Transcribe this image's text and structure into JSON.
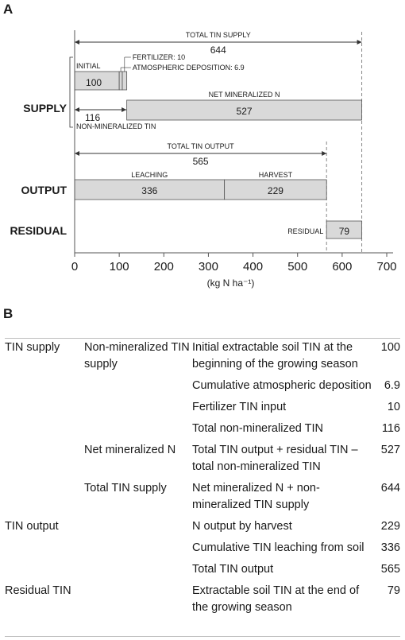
{
  "panel_a_label": "A",
  "panel_b_label": "B",
  "chart_data": {
    "type": "bar",
    "xlabel": "(kg N ha⁻¹)",
    "xlim": [
      0,
      700
    ],
    "xticks": [
      0,
      100,
      200,
      300,
      400,
      500,
      600,
      700
    ],
    "groups": [
      "SUPPLY",
      "OUTPUT",
      "RESIDUAL"
    ],
    "bars": [
      {
        "group": "SUPPLY",
        "label": "INITIAL",
        "value": 100,
        "start": 0,
        "value_text": "100"
      },
      {
        "group": "SUPPLY",
        "label": "ATMOSPHERIC DEPOSITION: 6.9",
        "value": 6.9,
        "start": 100,
        "value_text": ""
      },
      {
        "group": "SUPPLY",
        "label": "FERTILIZER: 10",
        "value": 10,
        "start": 106.9,
        "value_text": ""
      },
      {
        "group": "SUPPLY",
        "label": "NET MINERALIZED N",
        "value": 527,
        "start": 116.9,
        "value_text": "527"
      },
      {
        "group": "OUTPUT",
        "label": "LEACHING",
        "value": 336,
        "start": 0,
        "value_text": "336"
      },
      {
        "group": "OUTPUT",
        "label": "HARVEST",
        "value": 229,
        "start": 336,
        "value_text": "229"
      },
      {
        "group": "RESIDUAL",
        "label": "RESIDUAL",
        "value": 79,
        "start": 565,
        "value_text": "79"
      }
    ],
    "annotations": [
      {
        "label": "TOTAL TIN SUPPLY",
        "value": 644,
        "value_text": "644"
      },
      {
        "label": "NON-MINERALIZED TIN",
        "value": 116,
        "value_text": "116"
      },
      {
        "label": "TOTAL TIN OUTPUT",
        "value": 565,
        "value_text": "565"
      }
    ],
    "colors": {
      "bar_fill": "#d9d9d9",
      "bar_stroke": "#555555",
      "dashed": "#888888"
    }
  },
  "table": [
    {
      "c1": "TIN supply",
      "c2": "Non-mineralized TIN supply",
      "c3": "Initial extractable soil TIN at the beginning of the growing season",
      "c4": "100"
    },
    {
      "c1": "",
      "c2": "",
      "c3": "Cumulative atmospheric deposition",
      "c4": "6.9"
    },
    {
      "c1": "",
      "c2": "",
      "c3": "Fertilizer TIN input",
      "c4": "10"
    },
    {
      "c1": "",
      "c2": "",
      "c3": "Total non-mineralized TIN",
      "c4": "116"
    },
    {
      "c1": "",
      "c2": "Net mineralized N",
      "c3": "Total TIN output + residual TIN – total non-mineralized TIN",
      "c4": "527"
    },
    {
      "c1": "",
      "c2": "Total TIN supply",
      "c3": "Net mineralized N + non-mineralized TIN supply",
      "c4": "644"
    },
    {
      "c1": "TIN output",
      "c2": "",
      "c3": "N output by harvest",
      "c4": "229"
    },
    {
      "c1": "",
      "c2": "",
      "c3": "Cumulative TIN leaching from soil",
      "c4": "336"
    },
    {
      "c1": "",
      "c2": "",
      "c3": "Total TIN output",
      "c4": "565"
    },
    {
      "c1": "Residual TIN",
      "c2": "",
      "c3": "Extractable soil TIN at the end of the growing season",
      "c4": "79"
    }
  ]
}
